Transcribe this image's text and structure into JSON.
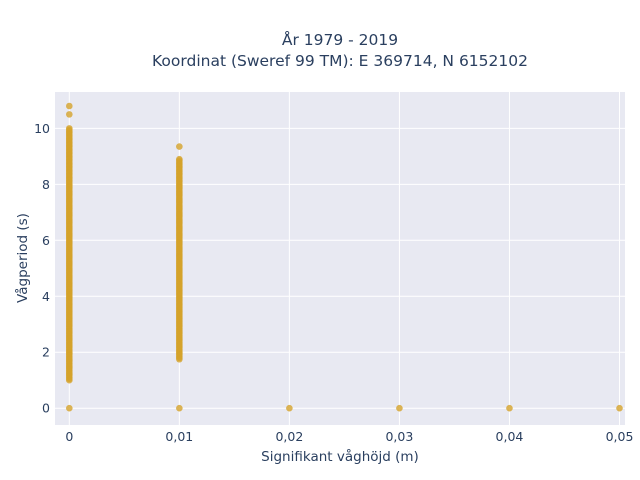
{
  "chart_data": {
    "type": "scatter",
    "title_line1": "År 1979 - 2019",
    "title_line2": "Koordinat (Sweref 99 TM): E 369714, N 6152102",
    "xlabel": "Signifikant våghöjd (m)",
    "ylabel": "Vågperiod (s)",
    "xlim": [
      -0.0013,
      0.0505
    ],
    "ylim": [
      -0.6,
      11.3
    ],
    "xticks": [
      0,
      0.01,
      0.02,
      0.03,
      0.04,
      0.05
    ],
    "xtick_labels": [
      "0",
      "0,01",
      "0,02",
      "0,03",
      "0,04",
      "0,05"
    ],
    "yticks": [
      0,
      2,
      4,
      6,
      8,
      10
    ],
    "ytick_labels": [
      "0",
      "2",
      "4",
      "6",
      "8",
      "10"
    ],
    "grid": true,
    "marker_color": "#d4a32a",
    "plot_background": "#e8e9f2",
    "series": [
      {
        "point_groups": [
          {
            "x": 0,
            "y_min": 1.0,
            "y_max": 10.0,
            "step": 0.05
          },
          {
            "x": 0.01,
            "y_min": 1.8,
            "y_max": 8.9,
            "step": 0.05
          }
        ],
        "points": [
          {
            "x": 0,
            "y": 10.8
          },
          {
            "x": 0,
            "y": 10.5
          },
          {
            "x": 0,
            "y": 0
          },
          {
            "x": 0.01,
            "y": 9.35
          },
          {
            "x": 0.01,
            "y": 1.75
          },
          {
            "x": 0.01,
            "y": 0
          },
          {
            "x": 0.02,
            "y": 0
          },
          {
            "x": 0.03,
            "y": 0
          },
          {
            "x": 0.04,
            "y": 0
          },
          {
            "x": 0.05,
            "y": 0
          }
        ]
      }
    ]
  }
}
